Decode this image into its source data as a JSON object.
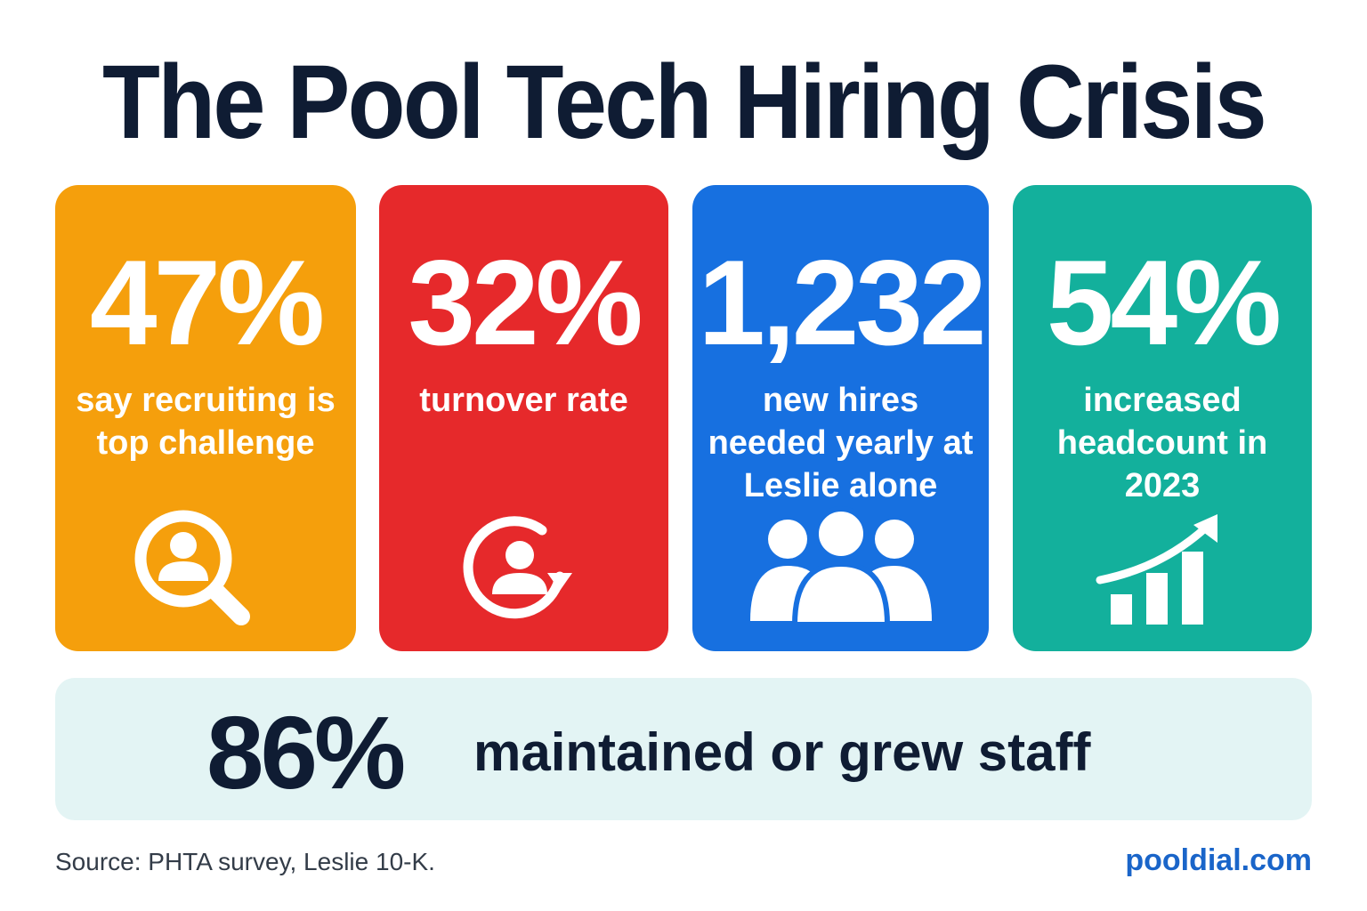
{
  "title": "The Pool Tech Hiring Crisis",
  "colors": {
    "title": "#0f1c33",
    "recruiting_card": "#f59f0c",
    "turnover_card": "#e6292b",
    "hires_card": "#1770e0",
    "headcount_card": "#13b09c",
    "banner_bg": "#e3f4f4",
    "brand": "#1a65c9"
  },
  "stats": [
    {
      "value": "47%",
      "label": "say recruiting is top challenge",
      "icon": "person-search-icon"
    },
    {
      "value": "32%",
      "label": "turnover rate",
      "icon": "person-refresh-icon"
    },
    {
      "value": "1,232",
      "label": "new hires needed yearly at Leslie alone",
      "icon": "group-icon"
    },
    {
      "value": "54%",
      "label": "increased headcount in 2023",
      "icon": "growth-chart-icon"
    }
  ],
  "banner": {
    "value": "86%",
    "label": "maintained or grew staff"
  },
  "footer": {
    "source": "Source: PHTA survey, Leslie 10-K.",
    "brand": "pooldial.com"
  }
}
